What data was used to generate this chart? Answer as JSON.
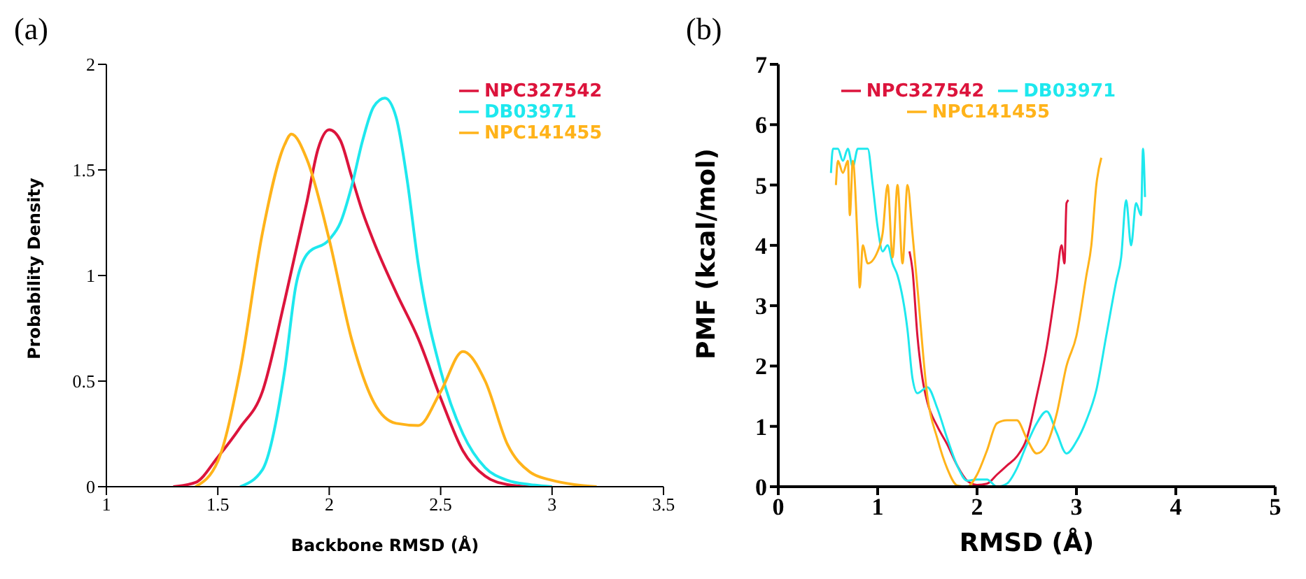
{
  "chart_data": [
    {
      "type": "line",
      "title": "(a)",
      "xlabel": "Backbone RMSD (Å)",
      "ylabel": "Probability Density",
      "xlim": [
        1,
        3.5
      ],
      "xticks": [
        1,
        1.5,
        2,
        2.5,
        3,
        3.5
      ],
      "ylim": [
        0,
        2
      ],
      "yticks": [
        0,
        0.5,
        1,
        1.5,
        2
      ],
      "legend": "top right",
      "marker": "none",
      "line_style": "solid",
      "series": [
        {
          "name": "NPC327542",
          "color": "#dc143c",
          "x": [
            1.3,
            1.4,
            1.5,
            1.6,
            1.7,
            1.8,
            1.9,
            1.95,
            2.0,
            2.05,
            2.1,
            2.15,
            2.2,
            2.3,
            2.4,
            2.5,
            2.6,
            2.7,
            2.8,
            2.9
          ],
          "values": [
            0,
            0.02,
            0.14,
            0.28,
            0.45,
            0.88,
            1.35,
            1.6,
            1.69,
            1.64,
            1.47,
            1.3,
            1.16,
            0.92,
            0.7,
            0.42,
            0.17,
            0.05,
            0.01,
            0
          ]
        },
        {
          "name": "DB03971",
          "color": "#1ee8ee",
          "x": [
            1.6,
            1.7,
            1.8,
            1.85,
            1.9,
            2.0,
            2.05,
            2.1,
            2.15,
            2.2,
            2.25,
            2.3,
            2.35,
            2.4,
            2.5,
            2.6,
            2.7,
            2.8,
            2.9,
            3.0
          ],
          "values": [
            0,
            0.08,
            0.55,
            0.95,
            1.1,
            1.17,
            1.25,
            1.42,
            1.64,
            1.8,
            1.84,
            1.75,
            1.45,
            1.05,
            0.55,
            0.25,
            0.09,
            0.03,
            0.01,
            0
          ]
        },
        {
          "name": "NPC141455",
          "color": "#ffb31a",
          "x": [
            1.4,
            1.5,
            1.6,
            1.7,
            1.8,
            1.83,
            1.9,
            2.0,
            2.1,
            2.2,
            2.3,
            2.4,
            2.5,
            2.6,
            2.7,
            2.8,
            2.9,
            3.0,
            3.1,
            3.2
          ],
          "values": [
            0,
            0.12,
            0.55,
            1.2,
            1.62,
            1.67,
            1.55,
            1.17,
            0.7,
            0.4,
            0.3,
            0.29,
            0.45,
            0.64,
            0.5,
            0.2,
            0.07,
            0.03,
            0.01,
            0
          ]
        }
      ]
    },
    {
      "type": "line",
      "title": "(b)",
      "xlabel": "RMSD (Å)",
      "ylabel": "PMF (kcal/mol)",
      "xlim": [
        0,
        5
      ],
      "xticks": [
        0,
        1,
        2,
        3,
        4,
        5
      ],
      "ylim": [
        0,
        7
      ],
      "yticks": [
        0,
        1,
        2,
        3,
        4,
        5,
        6,
        7
      ],
      "legend": "top left",
      "marker": "none",
      "line_style": "solid",
      "series": [
        {
          "name": "NPC327542",
          "color": "#dc143c",
          "x": [
            1.32,
            1.35,
            1.4,
            1.45,
            1.5,
            1.6,
            1.7,
            1.8,
            1.9,
            2.0,
            2.1,
            2.2,
            2.3,
            2.4,
            2.5,
            2.6,
            2.7,
            2.8,
            2.85,
            2.88,
            2.9,
            2.92
          ],
          "values": [
            3.9,
            3.6,
            2.5,
            1.8,
            1.4,
            1.0,
            0.7,
            0.35,
            0.1,
            0.03,
            0.05,
            0.2,
            0.35,
            0.5,
            0.8,
            1.5,
            2.3,
            3.4,
            4.0,
            3.7,
            4.7,
            4.75
          ]
        },
        {
          "name": "DB03971",
          "color": "#1ee8ee",
          "x": [
            0.53,
            0.55,
            0.6,
            0.65,
            0.7,
            0.75,
            0.8,
            0.9,
            0.95,
            1.0,
            1.05,
            1.1,
            1.15,
            1.2,
            1.3,
            1.35,
            1.4,
            1.5,
            1.6,
            1.7,
            1.8,
            1.9,
            2.0,
            2.1,
            2.2,
            2.3,
            2.4,
            2.5,
            2.6,
            2.7,
            2.8,
            2.9,
            3.0,
            3.1,
            3.2,
            3.3,
            3.4,
            3.45,
            3.5,
            3.55,
            3.6,
            3.65,
            3.67,
            3.69
          ],
          "values": [
            5.2,
            5.6,
            5.6,
            5.4,
            5.6,
            5.3,
            5.6,
            5.6,
            5.0,
            4.3,
            3.9,
            4.0,
            3.7,
            3.5,
            2.6,
            1.8,
            1.55,
            1.65,
            1.3,
            0.8,
            0.35,
            0.1,
            0.12,
            0.12,
            0.0,
            0.05,
            0.3,
            0.7,
            1.05,
            1.25,
            0.9,
            0.55,
            0.75,
            1.1,
            1.6,
            2.5,
            3.4,
            3.8,
            4.75,
            4.0,
            4.7,
            4.5,
            5.6,
            4.8
          ]
        },
        {
          "name": "NPC141455",
          "color": "#ffb31a",
          "x": [
            0.58,
            0.6,
            0.65,
            0.7,
            0.72,
            0.75,
            0.8,
            0.82,
            0.85,
            0.9,
            1.0,
            1.05,
            1.1,
            1.15,
            1.2,
            1.25,
            1.3,
            1.35,
            1.4,
            1.5,
            1.6,
            1.7,
            1.8,
            1.9,
            2.0,
            2.1,
            2.2,
            2.3,
            2.4,
            2.5,
            2.6,
            2.7,
            2.8,
            2.9,
            3.0,
            3.1,
            3.15,
            3.2,
            3.25
          ],
          "values": [
            5.0,
            5.4,
            5.2,
            5.4,
            4.5,
            5.4,
            4.0,
            3.3,
            4.0,
            3.7,
            3.9,
            4.2,
            5.0,
            3.8,
            5.0,
            3.7,
            5.0,
            4.2,
            3.3,
            1.5,
            0.8,
            0.3,
            0.02,
            0.0,
            0.2,
            0.6,
            1.05,
            1.1,
            1.1,
            0.8,
            0.55,
            0.7,
            1.2,
            2.0,
            2.5,
            3.5,
            4.0,
            5.0,
            5.45
          ]
        }
      ]
    }
  ]
}
